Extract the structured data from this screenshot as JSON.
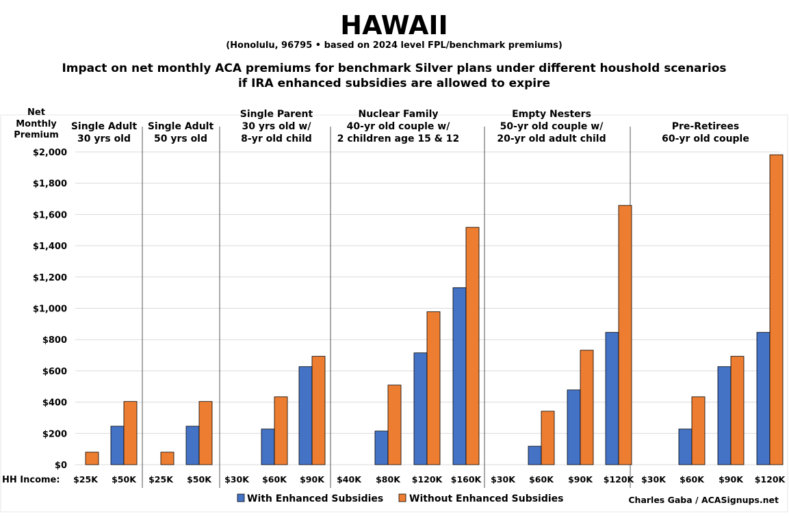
{
  "chart_data": {
    "type": "bar",
    "title": "HAWAII",
    "subtitle": "(Honolulu, 96795 • based on 2024 level FPL/benchmark premiums)",
    "heading_lines": [
      "Impact on net monthly ACA premiums for benchmark Silver plans under different houshold scenarios",
      "if IRA enhanced subsidies are allowed to expire"
    ],
    "ylabel_lines": [
      "Net",
      "Monthly",
      "Premium"
    ],
    "xlabel": "HH Income:",
    "ylim": [
      0,
      2000
    ],
    "yticks": [
      "$0",
      "$200",
      "$400",
      "$600",
      "$800",
      "$1,000",
      "$1,200",
      "$1,400",
      "$1,600",
      "$1,800",
      "$2,000"
    ],
    "grid": true,
    "legend_position": "bottom",
    "credit": "Charles Gaba / ACASignups.net",
    "colors": {
      "with": "#4472C4",
      "without": "#ED7D31"
    },
    "series_names": [
      "With Enhanced Subsidies",
      "Without Enhanced Subsidies"
    ],
    "groups": [
      {
        "label_lines": [
          "Single Adult",
          "30 yrs old"
        ],
        "categories": [
          "$25K",
          "$50K"
        ],
        "with": [
          0,
          246
        ],
        "without": [
          80,
          404
        ]
      },
      {
        "label_lines": [
          "Single Adult",
          "50 yrs old"
        ],
        "categories": [
          "$25K",
          "$50K"
        ],
        "with": [
          0,
          246
        ],
        "without": [
          80,
          404
        ]
      },
      {
        "label_lines": [
          "Single Parent",
          "30 yrs old w/",
          "8-yr old child"
        ],
        "categories": [
          "$30K",
          "$60K",
          "$90K"
        ],
        "with": [
          0,
          228,
          627
        ],
        "without": [
          0,
          434,
          693
        ]
      },
      {
        "label_lines": [
          "Nuclear Family",
          "40-yr old couple w/",
          "2 children age 15 & 12"
        ],
        "categories": [
          "$40K",
          "$80K",
          "$120K",
          "$160K"
        ],
        "with": [
          0,
          215,
          715,
          1132
        ],
        "without": [
          0,
          509,
          978,
          1518
        ]
      },
      {
        "label_lines": [
          "Empty Nesters",
          "50-yr old couple w/",
          "20-yr old adult child"
        ],
        "categories": [
          "$30K",
          "$60K",
          "$90K",
          "$120K"
        ],
        "with": [
          0,
          118,
          478,
          846
        ],
        "without": [
          0,
          342,
          732,
          1658
        ]
      },
      {
        "label_lines": [
          "Pre-Retirees",
          "60-yr old couple"
        ],
        "categories": [
          "$30K",
          "$60K",
          "$90K",
          "$120K"
        ],
        "with": [
          0,
          228,
          627,
          846
        ],
        "without": [
          0,
          434,
          693,
          1982
        ]
      }
    ]
  }
}
